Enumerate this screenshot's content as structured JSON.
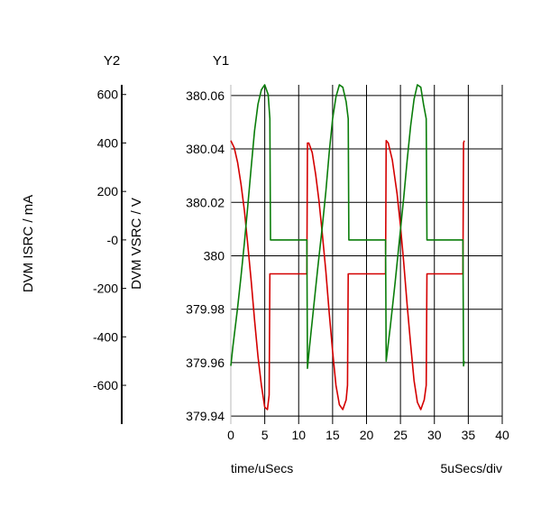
{
  "chart_data": {
    "type": "line",
    "title": "",
    "axes": {
      "y2": {
        "header": "Y2",
        "label": "DVM ISRC / mA",
        "ticks": [
          {
            "value": 600,
            "label": "600"
          },
          {
            "value": 400,
            "label": "400"
          },
          {
            "value": 200,
            "label": "200"
          },
          {
            "value": 0,
            "label": "-0"
          },
          {
            "value": -200,
            "label": "-200"
          },
          {
            "value": -400,
            "label": "-400"
          },
          {
            "value": -600,
            "label": "-600"
          }
        ],
        "range": [
          -760,
          640
        ]
      },
      "y1": {
        "header": "Y1",
        "label": "DVM VSRC / V",
        "ticks": [
          {
            "value": 380.06,
            "label": "380.06"
          },
          {
            "value": 380.04,
            "label": "380.04"
          },
          {
            "value": 380.02,
            "label": "380.02"
          },
          {
            "value": 380.0,
            "label": "380"
          },
          {
            "value": 379.98,
            "label": "379.98"
          },
          {
            "value": 379.96,
            "label": "379.96"
          },
          {
            "value": 379.94,
            "label": "379.94"
          }
        ],
        "range": [
          379.937,
          380.064
        ]
      },
      "x": {
        "label": "time/uSecs",
        "scale_note": "5uSecs/div",
        "ticks": [
          {
            "value": 0,
            "label": "0"
          },
          {
            "value": 5,
            "label": "5"
          },
          {
            "value": 10,
            "label": "10"
          },
          {
            "value": 15,
            "label": "15"
          },
          {
            "value": 20,
            "label": "20"
          },
          {
            "value": 25,
            "label": "25"
          },
          {
            "value": 30,
            "label": "30"
          },
          {
            "value": 35,
            "label": "35"
          },
          {
            "value": 40,
            "label": "40"
          }
        ],
        "range": [
          0,
          40
        ]
      }
    },
    "grid": true,
    "series": [
      {
        "axis": "y2",
        "color": "#d40000",
        "points": [
          [
            0.0,
            410
          ],
          [
            0.5,
            380
          ],
          [
            1.0,
            320
          ],
          [
            1.5,
            230
          ],
          [
            2.0,
            120
          ],
          [
            2.5,
            -20
          ],
          [
            3.0,
            -170
          ],
          [
            3.5,
            -330
          ],
          [
            4.0,
            -480
          ],
          [
            4.5,
            -600
          ],
          [
            5.0,
            -690
          ],
          [
            5.4,
            -700
          ],
          [
            5.65,
            -640
          ],
          [
            5.75,
            -140
          ],
          [
            7.0,
            -140
          ],
          [
            10.5,
            -140
          ],
          [
            11.2,
            -140
          ],
          [
            11.3,
            400
          ],
          [
            11.5,
            400
          ],
          [
            12.0,
            360
          ],
          [
            12.5,
            270
          ],
          [
            13.0,
            160
          ],
          [
            13.5,
            20
          ],
          [
            14.0,
            -130
          ],
          [
            14.5,
            -300
          ],
          [
            15.0,
            -460
          ],
          [
            15.5,
            -600
          ],
          [
            16.0,
            -680
          ],
          [
            16.5,
            -700
          ],
          [
            17.0,
            -660
          ],
          [
            17.2,
            -600
          ],
          [
            17.3,
            -140
          ],
          [
            19.0,
            -140
          ],
          [
            21.0,
            -140
          ],
          [
            22.8,
            -140
          ],
          [
            22.9,
            410
          ],
          [
            23.2,
            400
          ],
          [
            23.8,
            330
          ],
          [
            24.5,
            190
          ],
          [
            25.0,
            60
          ],
          [
            25.5,
            -100
          ],
          [
            26.0,
            -270
          ],
          [
            26.5,
            -430
          ],
          [
            27.0,
            -580
          ],
          [
            27.5,
            -670
          ],
          [
            28.0,
            -700
          ],
          [
            28.5,
            -660
          ],
          [
            28.8,
            -600
          ],
          [
            28.9,
            -140
          ],
          [
            30.0,
            -140
          ],
          [
            32.0,
            -140
          ],
          [
            34.2,
            -140
          ],
          [
            34.3,
            400
          ],
          [
            34.4,
            410
          ]
        ]
      },
      {
        "axis": "y2",
        "color": "#0a7d0a",
        "points": [
          [
            0.0,
            -520
          ],
          [
            0.3,
            -440
          ],
          [
            1.0,
            -280
          ],
          [
            1.5,
            -150
          ],
          [
            2.0,
            -10
          ],
          [
            2.5,
            140
          ],
          [
            3.0,
            300
          ],
          [
            3.5,
            450
          ],
          [
            4.0,
            560
          ],
          [
            4.5,
            620
          ],
          [
            5.0,
            640
          ],
          [
            5.5,
            600
          ],
          [
            5.75,
            500
          ],
          [
            5.85,
            0
          ],
          [
            7.0,
            0
          ],
          [
            9.0,
            0
          ],
          [
            11.2,
            0
          ],
          [
            11.3,
            -530
          ],
          [
            11.6,
            -440
          ],
          [
            12.2,
            -280
          ],
          [
            12.8,
            -120
          ],
          [
            13.5,
            60
          ],
          [
            14.0,
            200
          ],
          [
            14.5,
            360
          ],
          [
            15.0,
            500
          ],
          [
            15.5,
            590
          ],
          [
            16.0,
            640
          ],
          [
            16.5,
            630
          ],
          [
            17.0,
            570
          ],
          [
            17.3,
            500
          ],
          [
            17.4,
            0
          ],
          [
            19.0,
            0
          ],
          [
            21.0,
            0
          ],
          [
            22.8,
            0
          ],
          [
            22.9,
            -500
          ],
          [
            23.5,
            -360
          ],
          [
            24.2,
            -180
          ],
          [
            25.0,
            40
          ],
          [
            25.5,
            180
          ],
          [
            26.0,
            330
          ],
          [
            26.5,
            470
          ],
          [
            27.0,
            580
          ],
          [
            27.5,
            640
          ],
          [
            28.0,
            630
          ],
          [
            28.4,
            560
          ],
          [
            28.8,
            500
          ],
          [
            28.9,
            0
          ],
          [
            30.0,
            0
          ],
          [
            32.0,
            0
          ],
          [
            34.2,
            0
          ],
          [
            34.3,
            -520
          ],
          [
            34.4,
            -500
          ]
        ]
      }
    ]
  }
}
